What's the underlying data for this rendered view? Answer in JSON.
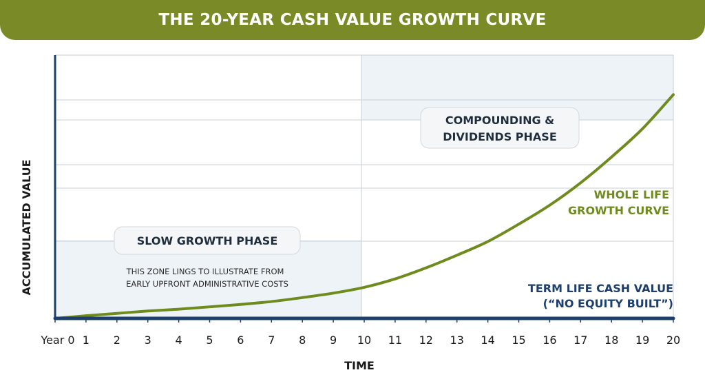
{
  "banner": {
    "title": "THE 20-YEAR CASH VALUE GROWTH CURVE"
  },
  "chart_data": {
    "type": "line",
    "title": "THE 20-YEAR CASH VALUE GROWTH CURVE",
    "xlabel": "TIME",
    "ylabel": "ACCUMULATED VALUE",
    "x": [
      0,
      1,
      2,
      3,
      4,
      5,
      6,
      7,
      8,
      9,
      10,
      11,
      12,
      13,
      14,
      15,
      16,
      17,
      18,
      19,
      20
    ],
    "xtick_labels": [
      "Year 0",
      "1",
      "2",
      "3",
      "4",
      "5",
      "6",
      "7",
      "8",
      "9",
      "10",
      "11",
      "12",
      "13",
      "14",
      "15",
      "16",
      "17",
      "18",
      "19",
      "20"
    ],
    "xlim": [
      0,
      20
    ],
    "ylim": [
      0,
      100
    ],
    "grid": true,
    "series": [
      {
        "name": "WHOLE LIFE GROWTH CURVE",
        "color": "#6f8a1d",
        "values": [
          0,
          1,
          1.9,
          2.8,
          3.5,
          4.4,
          5.3,
          6.4,
          7.9,
          9.6,
          11.8,
          15.0,
          19.2,
          24.0,
          29.2,
          35.8,
          43.0,
          51.5,
          61.3,
          72.0,
          85.0
        ]
      },
      {
        "name": "TERM LIFE CASH VALUE",
        "color": "#1d3f6e",
        "values": [
          0,
          0,
          0,
          0,
          0,
          0,
          0,
          0,
          0,
          0,
          0,
          0,
          0,
          0,
          0,
          0,
          0,
          0,
          0,
          0,
          0
        ]
      }
    ],
    "annotations": {
      "slow_phase": {
        "title": "SLOW GROWTH PHASE",
        "note_line1": "THIS ZONE LINGS TO ILLUSTRATE FROM",
        "note_line2": "EARLY UPFRONT ADMINISTRATIVE COSTS"
      },
      "compound_phase": {
        "line1": "COMPOUNDING &",
        "line2": "DIVIDENDS PHASE"
      },
      "whole_life_label": {
        "line1": "WHOLE LIFE",
        "line2": "GROWTH CURVE"
      },
      "term_label": {
        "line1": "TERM LIFE CASH VALUE",
        "line2": "(“NO EQUITY BUILT”)"
      }
    },
    "colors": {
      "banner": "#7a8a26",
      "axis": "#1d3f6e",
      "shade": "#eef3f8",
      "whole_life": "#6f8a1d",
      "term": "#1d3f6e"
    }
  }
}
